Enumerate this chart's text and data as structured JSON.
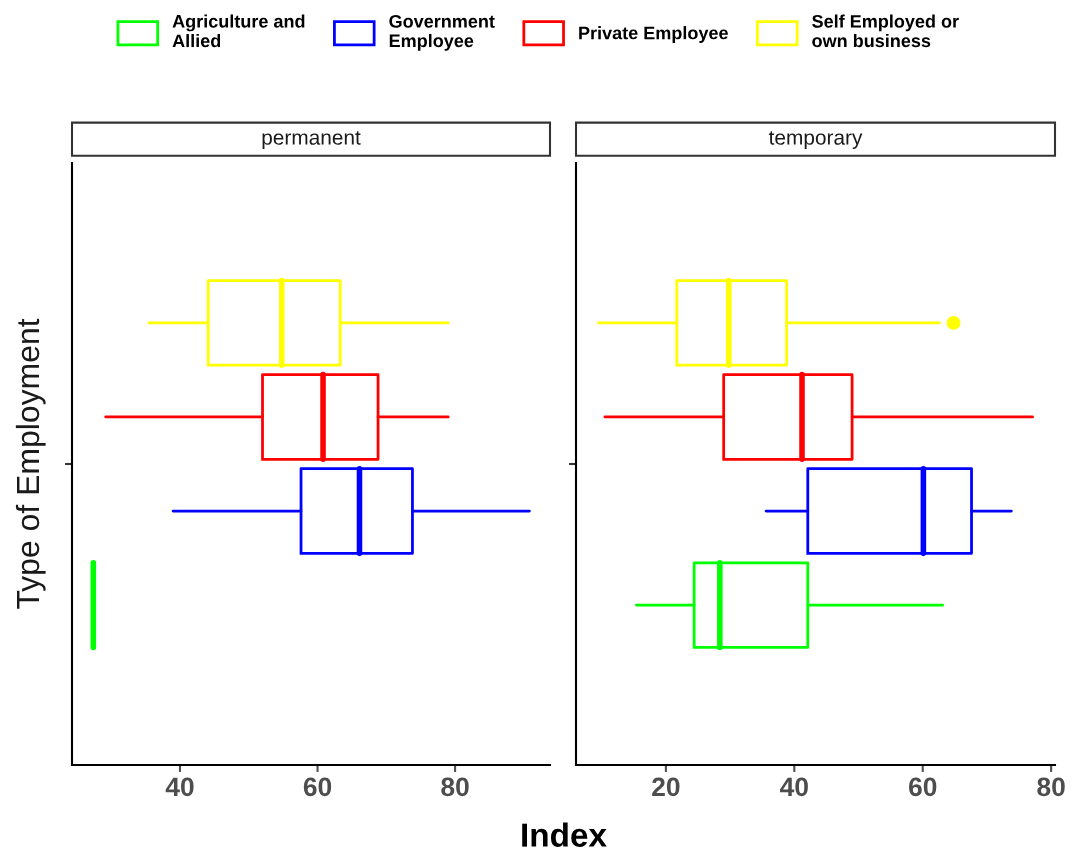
{
  "chart_data": [
    {
      "type": "box",
      "title": "permanent",
      "ylabel": "Type of Employment",
      "xlabel": "Index",
      "categories": [
        null
      ],
      "orientation": "horizontal",
      "xlim": [
        24.3,
        93.8
      ],
      "xticks": [
        40,
        60,
        80
      ],
      "tick_labels": "x",
      "grid": false,
      "legend": "top",
      "series": [
        {
          "name": "Agriculture and\nAllied",
          "color": "#00ff00",
          "boxes": [
            {
              "low": 27.4,
              "q1": 27.4,
              "median": 27.4,
              "q3": 27.4,
              "high": 27.4
            }
          ]
        },
        {
          "name": "Government\nEmployee",
          "color": "#0000ff",
          "boxes": [
            {
              "low": 39.0,
              "q1": 57.6,
              "median": 66.1,
              "q3": 73.8,
              "high": 90.8
            }
          ]
        },
        {
          "name": "Private Employee",
          "color": "#ff0000",
          "boxes": [
            {
              "low": 29.2,
              "q1": 52.0,
              "median": 60.8,
              "q3": 68.8,
              "high": 79.0
            }
          ]
        },
        {
          "name": "Self Employed or\nown business",
          "color": "#ffff00",
          "boxes": [
            {
              "low": 35.5,
              "q1": 44.1,
              "median": 54.8,
              "q3": 63.3,
              "high": 79.0
            }
          ]
        }
      ]
    },
    {
      "type": "box",
      "title": "temporary",
      "categories": [
        null
      ],
      "orientation": "horizontal",
      "xlim": [
        6.0,
        80.6
      ],
      "xticks": [
        20,
        40,
        60,
        80
      ],
      "tick_labels": "x",
      "grid": false,
      "series": [
        {
          "color": "#00ff00",
          "boxes": [
            {
              "low": 15.4,
              "q1": 24.4,
              "median": 28.4,
              "q3": 42.1,
              "high": 63.1
            }
          ]
        },
        {
          "color": "#0000ff",
          "boxes": [
            {
              "low": 35.6,
              "q1": 42.1,
              "median": 60.1,
              "q3": 67.6,
              "high": 73.8
            }
          ]
        },
        {
          "color": "#ff0000",
          "boxes": [
            {
              "low": 10.5,
              "q1": 29.0,
              "median": 41.2,
              "q3": 49.0,
              "high": 77.1
            }
          ]
        },
        {
          "color": "#ffff00",
          "boxes": [
            {
              "low": 9.5,
              "q1": 21.7,
              "median": 29.8,
              "q3": 38.8,
              "high": 62.6,
              "outliers": [
                64.8
              ]
            }
          ]
        }
      ]
    }
  ]
}
